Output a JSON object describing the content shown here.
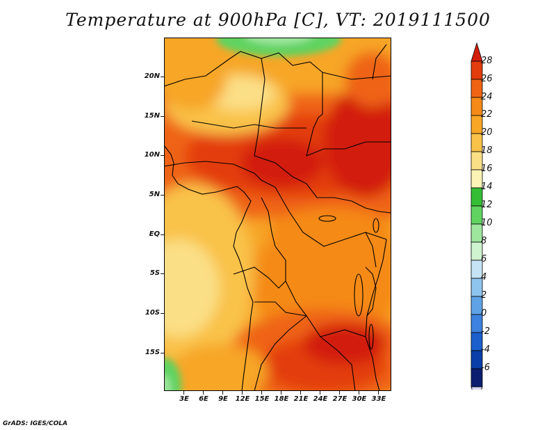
{
  "title": "Temperature at 900hPa [C], VT: 2019111500",
  "footer": "GrADS: IGES/COLA",
  "map": {
    "variable": "Temperature at 900hPa",
    "units": "C",
    "valid_time": "2019111500",
    "lon_range": [
      0,
      35
    ],
    "lat_range": [
      -20,
      24
    ],
    "lat_labels": [
      "20N",
      "15N",
      "10N",
      "5N",
      "EQ",
      "5S",
      "10S",
      "15S"
    ],
    "lon_labels": [
      "3E",
      "6E",
      "9E",
      "12E",
      "15E",
      "18E",
      "21E",
      "24E",
      "27E",
      "30E",
      "33E"
    ]
  },
  "colorbar": {
    "labels": [
      "28",
      "26",
      "24",
      "22",
      "20",
      "18",
      "16",
      "14",
      "12",
      "10",
      "8",
      "6",
      "4",
      "2",
      "0",
      "-2",
      "-4",
      "-6"
    ],
    "colors": [
      "#d21e0b",
      "#e33c0d",
      "#ef6412",
      "#f58a18",
      "#f7a626",
      "#f9c248",
      "#fbdf86",
      "#fcf3b6",
      "#35bd35",
      "#61d361",
      "#9ee59e",
      "#cff3cf",
      "#c5e3f5",
      "#8ec5ee",
      "#5fa3e6",
      "#3c82de",
      "#1b5fcc",
      "#0a3fa8",
      "#0c1e70",
      "#d8d8f0"
    ]
  }
}
